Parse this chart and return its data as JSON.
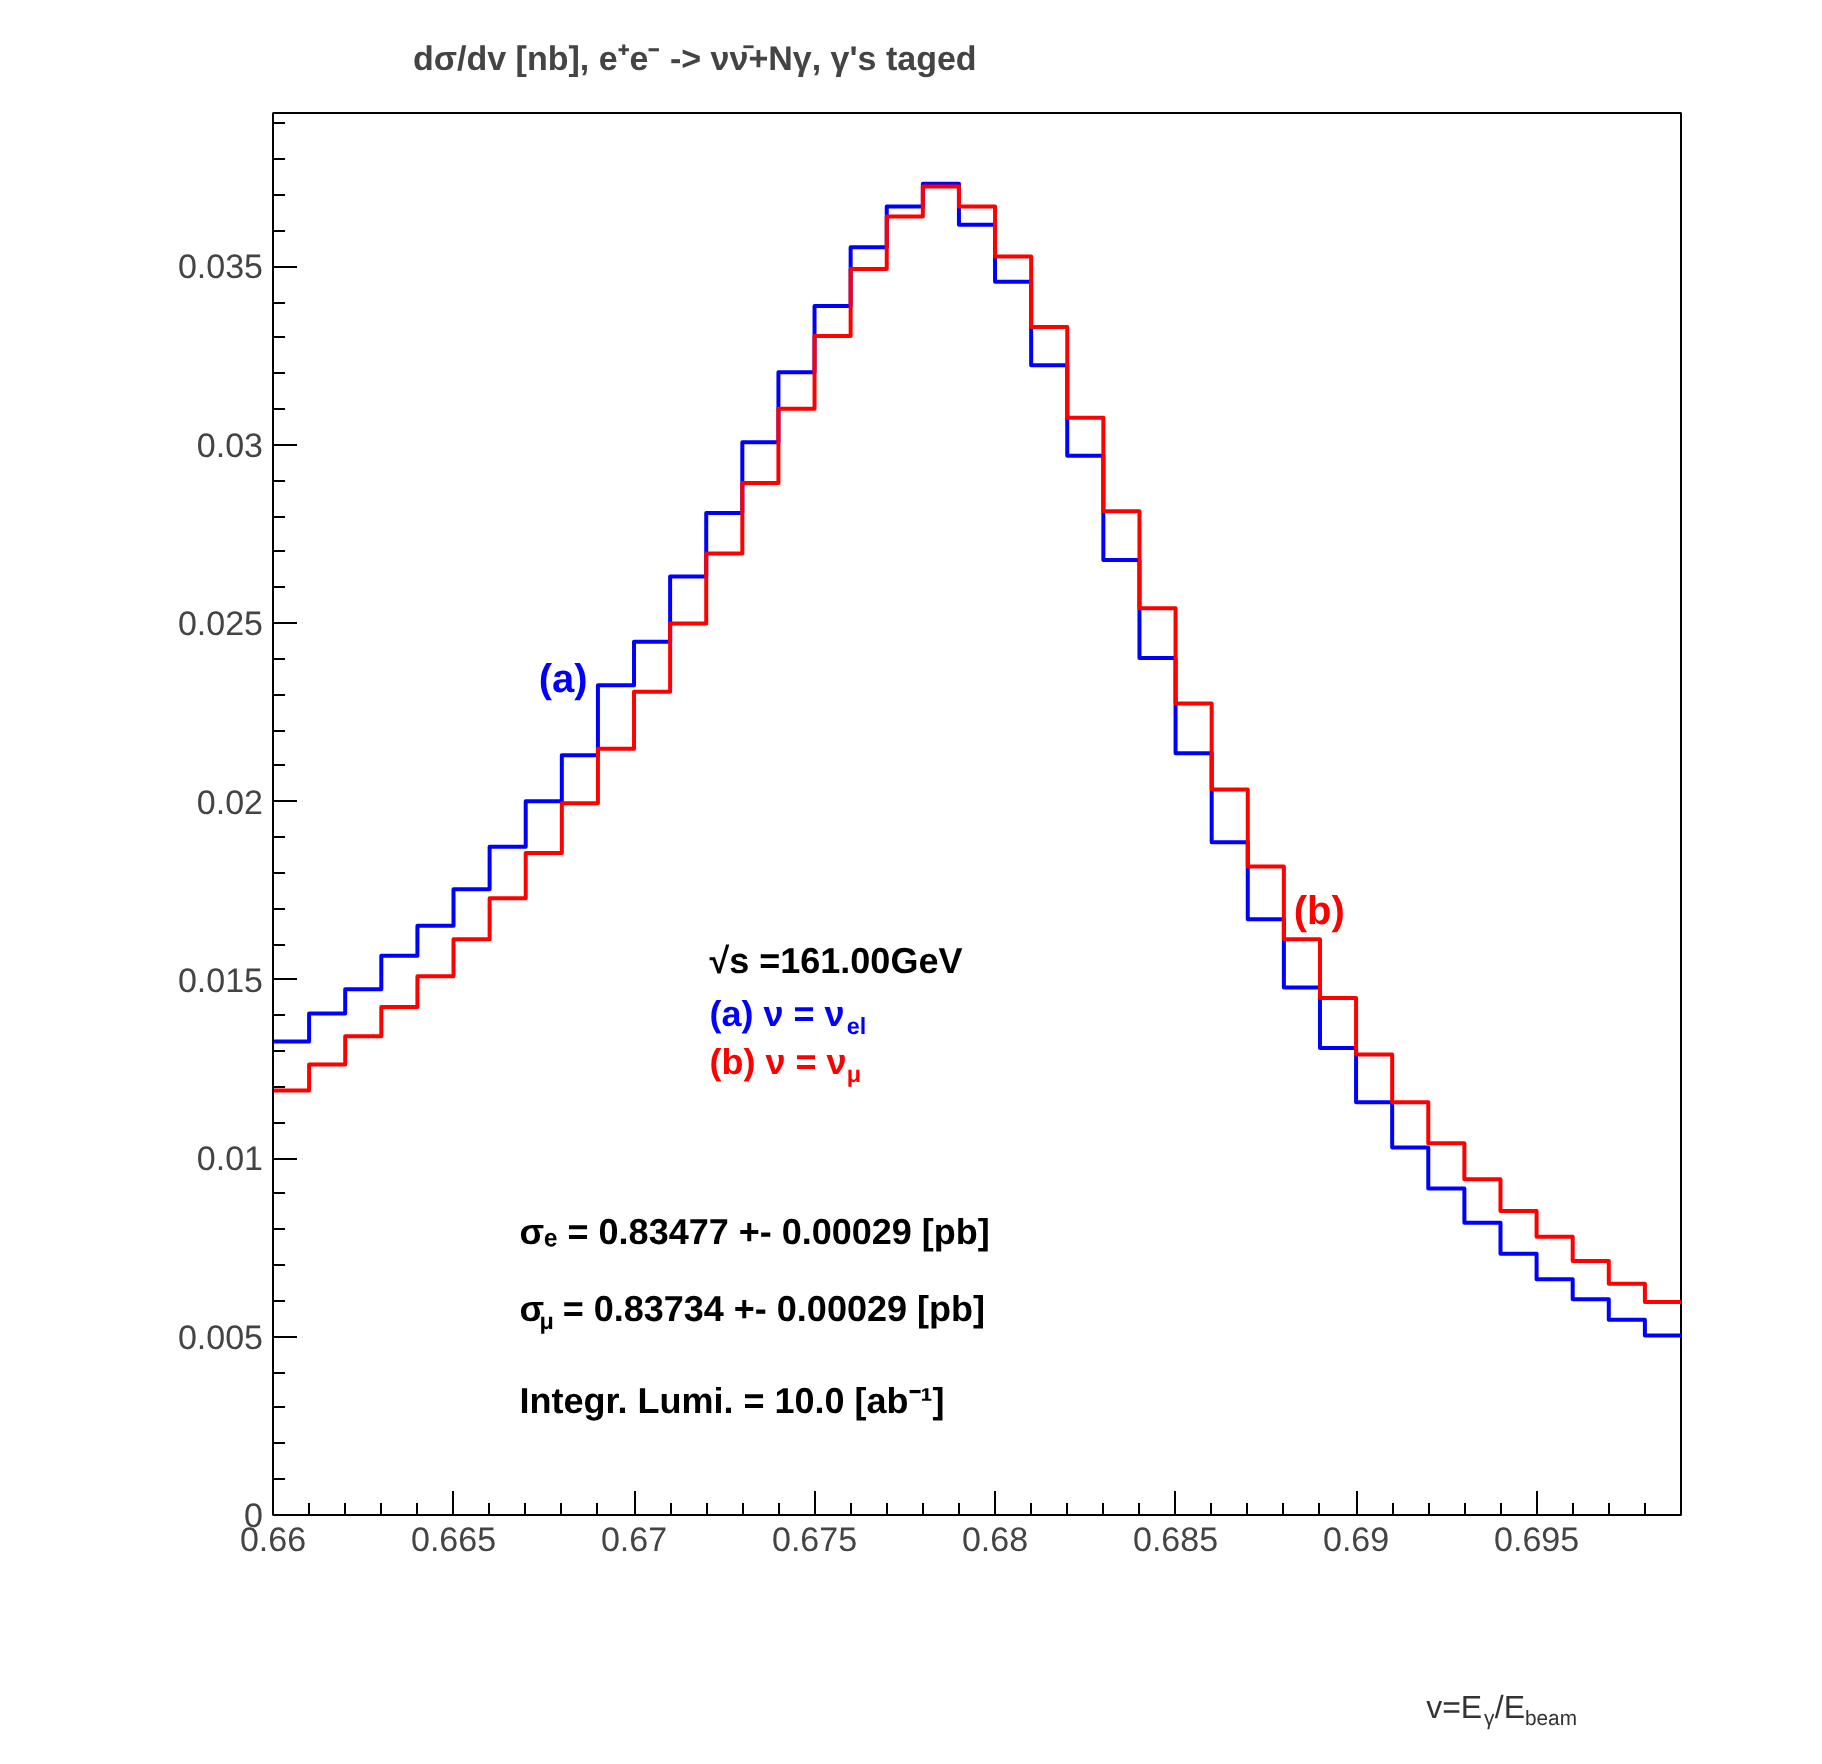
{
  "chart_data": {
    "type": "histogram",
    "title": "dσ/dv [nb],   e⁺e⁻ -> νν̄+Nγ,      γ's taged",
    "xlabel": "v=E$_{γ}$/E$_{beam}$",
    "bins": [
      0.66,
      0.661,
      0.662,
      0.663,
      0.664,
      0.665,
      0.666,
      0.667,
      0.668,
      0.669,
      0.67,
      0.671,
      0.672,
      0.673,
      0.674,
      0.675,
      0.676,
      0.677,
      0.678,
      0.679,
      0.68,
      0.681,
      0.682,
      0.683,
      0.684,
      0.685,
      0.686,
      0.687,
      0.688,
      0.689,
      0.69,
      0.691,
      0.692,
      0.693,
      0.694,
      0.695,
      0.696,
      0.697,
      0.698,
      0.699
    ],
    "series": [
      {
        "name": "(a)  ν = ν$_{el}$",
        "color": "#0000ff",
        "values": [
          0.01327,
          0.01406,
          0.01474,
          0.01568,
          0.01652,
          0.01754,
          0.01873,
          0.02001,
          0.0213,
          0.02326,
          0.02448,
          0.02631,
          0.02809,
          0.03007,
          0.03203,
          0.03389,
          0.03554,
          0.03668,
          0.03732,
          0.03617,
          0.03457,
          0.03223,
          0.02969,
          0.02677,
          0.02402,
          0.02135,
          0.01886,
          0.0167,
          0.01479,
          0.01309,
          0.01157,
          0.0103,
          0.00915,
          0.00819,
          0.00732,
          0.00661,
          0.00605,
          0.00547,
          0.00503
        ]
      },
      {
        "name": "(b)  ν = ν$_{μ}$",
        "color": "#ff0000",
        "values": [
          0.0119,
          0.01263,
          0.01342,
          0.01424,
          0.0151,
          0.01614,
          0.01729,
          0.01856,
          0.01995,
          0.02148,
          0.02308,
          0.02499,
          0.02695,
          0.02893,
          0.03101,
          0.03305,
          0.03493,
          0.0364,
          0.03724,
          0.03668,
          0.03528,
          0.0333,
          0.03076,
          0.02814,
          0.02542,
          0.02275,
          0.02034,
          0.01818,
          0.01614,
          0.01449,
          0.01291,
          0.01157,
          0.01042,
          0.00941,
          0.00852,
          0.0078,
          0.00712,
          0.00648,
          0.00597
        ]
      }
    ],
    "xlim": [
      0.66,
      0.699
    ],
    "ylim": [
      0,
      0.0393
    ],
    "xticks": [
      0.66,
      0.665,
      0.67,
      0.675,
      0.68,
      0.685,
      0.69,
      0.695
    ],
    "yticks": [
      0,
      0.005,
      0.01,
      0.015,
      0.02,
      0.025,
      0.03,
      0.035
    ],
    "grid": false,
    "annotations": [
      {
        "text": "(a)",
        "x": 0.66966,
        "y": 0.0234
      },
      "(b)",
      "√s =161.00GeV",
      "σₑ = 0.83477 +- 0.00029 [pb]",
      "σ$_{μ}$ = 0.83734 +- 0.00029 [pb]",
      "Integr. Lumi. = 10.0 [ab⁻¹]"
    ]
  }
}
